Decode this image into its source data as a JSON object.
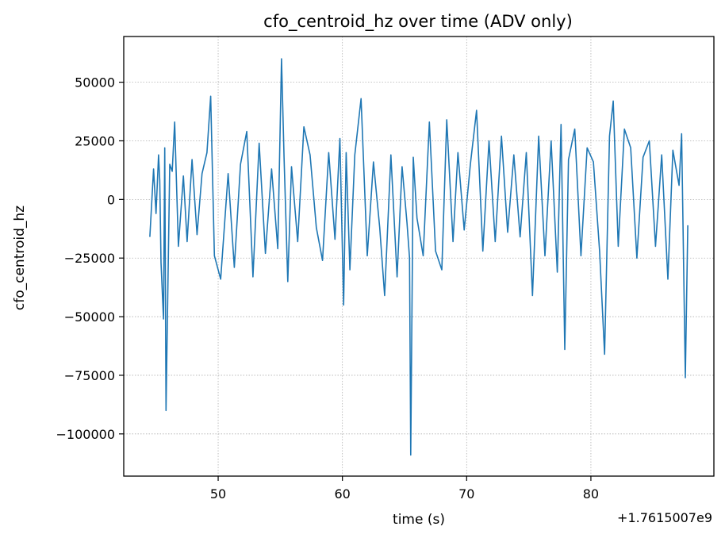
{
  "chart_data": {
    "type": "line",
    "title": "cfo_centroid_hz over time (ADV only)",
    "xlabel": "time (s)",
    "ylabel": "cfo_centroid_hz",
    "x_offset_label": "+1.7615007e9",
    "x_tick_labels": [
      "50",
      "60",
      "70",
      "80"
    ],
    "y_tick_labels": [
      "50000",
      "25000",
      "0",
      "−25000",
      "−50000",
      "−75000",
      "−100000"
    ],
    "x_ticks": [
      50,
      60,
      70,
      80
    ],
    "y_ticks": [
      50000,
      25000,
      0,
      -25000,
      -50000,
      -75000,
      -100000
    ],
    "xlim": [
      42.4,
      89.9
    ],
    "ylim": [
      -118000,
      69500
    ],
    "grid": true,
    "line_color": "#1f77b4",
    "series": [
      {
        "name": "",
        "x": [
          44.5,
          44.8,
          45.0,
          45.2,
          45.3,
          45.4,
          45.6,
          45.7,
          45.8,
          46.1,
          46.3,
          46.5,
          46.8,
          47.2,
          47.5,
          47.9,
          48.3,
          48.7,
          49.1,
          49.4,
          49.7,
          50.2,
          50.8,
          51.3,
          51.8,
          52.3,
          52.8,
          53.3,
          53.8,
          54.3,
          54.8,
          55.1,
          55.3,
          55.6,
          55.9,
          56.4,
          56.9,
          57.4,
          57.9,
          58.4,
          58.9,
          59.4,
          59.8,
          60.1,
          60.3,
          60.6,
          61.0,
          61.5,
          62.0,
          62.5,
          63.0,
          63.4,
          63.9,
          64.4,
          64.8,
          65.2,
          65.4,
          65.5,
          65.7,
          66.0,
          66.5,
          67.0,
          67.5,
          68.0,
          68.4,
          68.9,
          69.3,
          69.8,
          70.3,
          70.8,
          71.3,
          71.8,
          72.3,
          72.8,
          73.3,
          73.8,
          74.3,
          74.8,
          75.3,
          75.8,
          76.3,
          76.8,
          77.3,
          77.6,
          77.9,
          78.2,
          78.7,
          79.2,
          79.7,
          80.2,
          80.7,
          81.1,
          81.5,
          81.8,
          82.2,
          82.7,
          83.2,
          83.7,
          84.2,
          84.7,
          85.2,
          85.7,
          86.2,
          86.6,
          87.1,
          87.3,
          87.6,
          87.8
        ],
        "y": [
          -16000,
          13000,
          -6000,
          19000,
          8000,
          -27000,
          -51000,
          22000,
          -90000,
          15000,
          12000,
          33000,
          -20000,
          10000,
          -18000,
          17000,
          -15000,
          11000,
          20000,
          44000,
          -24000,
          -34000,
          11000,
          -29000,
          15000,
          29000,
          -33000,
          24000,
          -23000,
          13000,
          -21000,
          60000,
          18000,
          -35000,
          14000,
          -18000,
          31000,
          19000,
          -12000,
          -26000,
          20000,
          -17000,
          26000,
          -45000,
          20000,
          -30000,
          19000,
          43000,
          -24000,
          16000,
          -12000,
          -41000,
          19000,
          -33000,
          14000,
          -10000,
          -25000,
          -109000,
          18000,
          -8000,
          -24000,
          33000,
          -22000,
          -30000,
          34000,
          -18000,
          20000,
          -13000,
          15000,
          38000,
          -22000,
          25000,
          -18000,
          27000,
          -14000,
          19000,
          -16000,
          20000,
          -41000,
          27000,
          -24000,
          25000,
          -31000,
          32000,
          -64000,
          17000,
          30000,
          -24000,
          22000,
          16000,
          -22000,
          -66000,
          27000,
          42000,
          -20000,
          30000,
          22000,
          -25000,
          18000,
          25000,
          -20000,
          19000,
          -34000,
          21000,
          6000,
          28000,
          -76000,
          -11000
        ]
      }
    ]
  }
}
